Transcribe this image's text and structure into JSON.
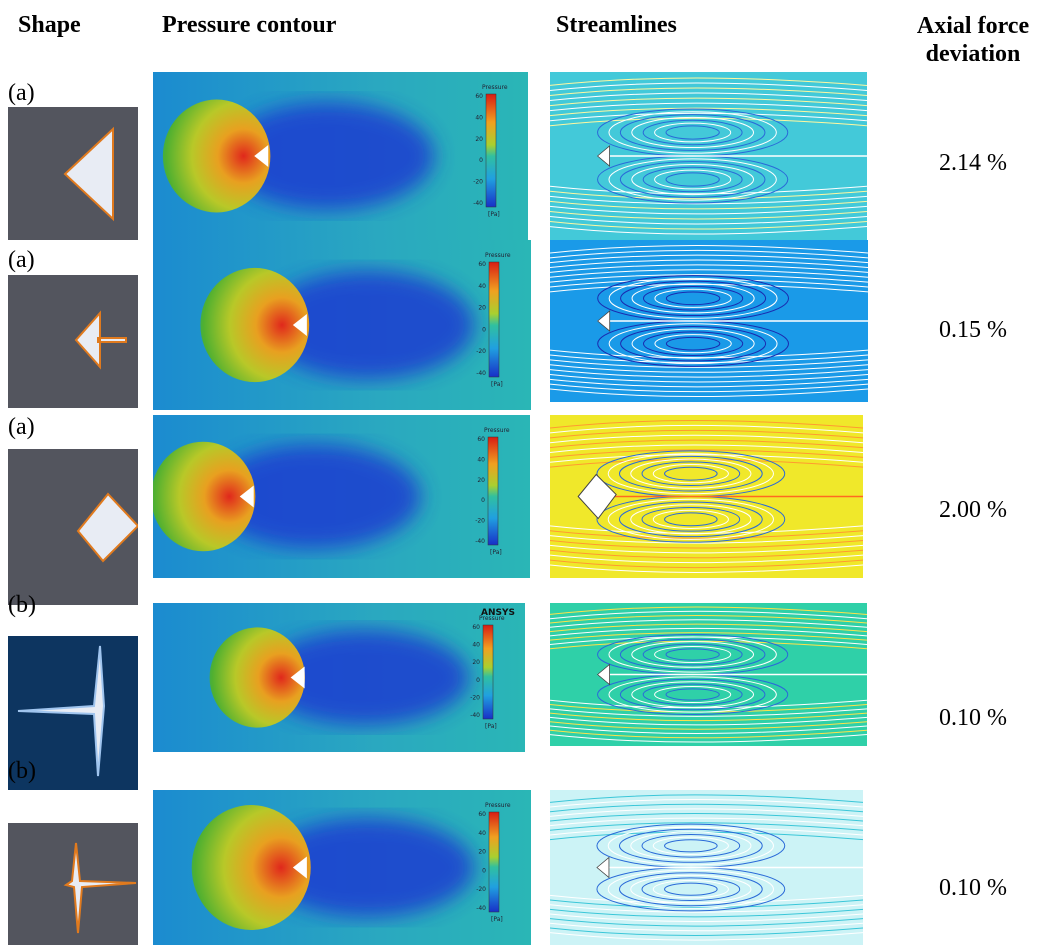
{
  "header": {
    "shape": "Shape",
    "pressure_contour": "Pressure contour",
    "streamlines": "Streamlines",
    "axial_force_deviation": "Axial force deviation"
  },
  "colorbar": {
    "title": "Pressure",
    "ticks": [
      "60",
      "40",
      "20",
      "0",
      "-20",
      "-40"
    ],
    "unit": "[Pa]"
  },
  "watermark": "ANSYS",
  "rows": [
    {
      "label": "(a)",
      "deviation": "2.14 %"
    },
    {
      "label": "(a)",
      "deviation": "0.15 %"
    },
    {
      "label": "(a)",
      "deviation": "2.00 %"
    },
    {
      "label": "(b)",
      "deviation": "0.10 %"
    },
    {
      "label": "(b)",
      "deviation": "0.10 %"
    }
  ]
}
